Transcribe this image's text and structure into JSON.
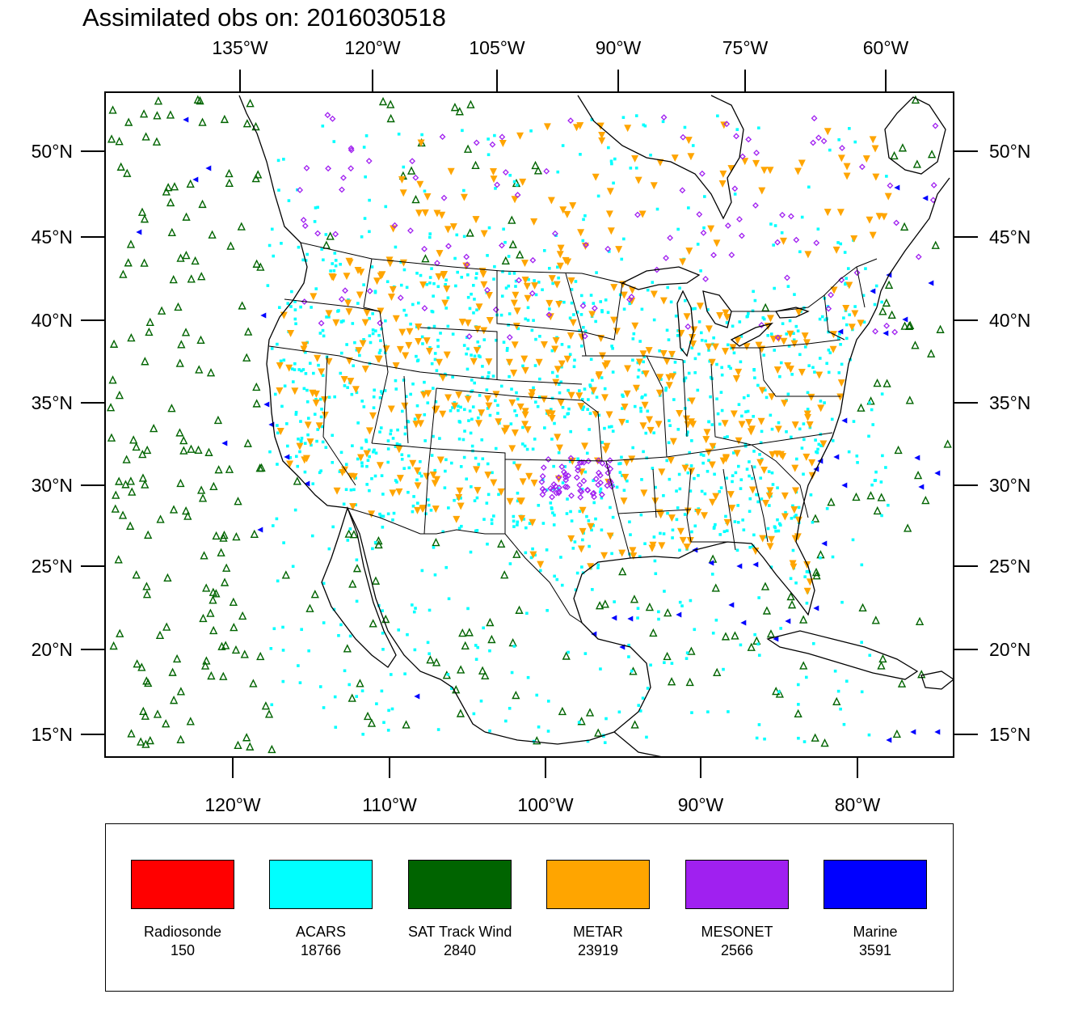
{
  "title": "Assimilated obs on: 2016030518",
  "top_lon_labels": [
    "135°W",
    "120°W",
    "105°W",
    "90°W",
    "75°W",
    "60°W"
  ],
  "bottom_lon_labels": [
    "120°W",
    "110°W",
    "100°W",
    "90°W",
    "80°W"
  ],
  "lat_labels": [
    "50°N",
    "45°N",
    "40°N",
    "35°N",
    "30°N",
    "25°N",
    "20°N",
    "15°N"
  ],
  "legend": [
    {
      "name": "Radiosonde",
      "count": "150",
      "color": "#ff0000"
    },
    {
      "name": "ACARS",
      "count": "18766",
      "color": "#00ffff"
    },
    {
      "name": "SAT Track Wind",
      "count": "2840",
      "color": "#006400"
    },
    {
      "name": "METAR",
      "count": "23919",
      "color": "#ffa500"
    },
    {
      "name": "MESONET",
      "count": "2566",
      "color": "#a020f0"
    },
    {
      "name": "Marine",
      "count": "3591",
      "color": "#0000ff"
    }
  ],
  "colors": {
    "acars": "#00ffff",
    "sat_track_wind": "#006400",
    "metar": "#ffa500",
    "mesonet": "#a020f0",
    "marine": "#0000ff",
    "coastline": "#000000"
  }
}
